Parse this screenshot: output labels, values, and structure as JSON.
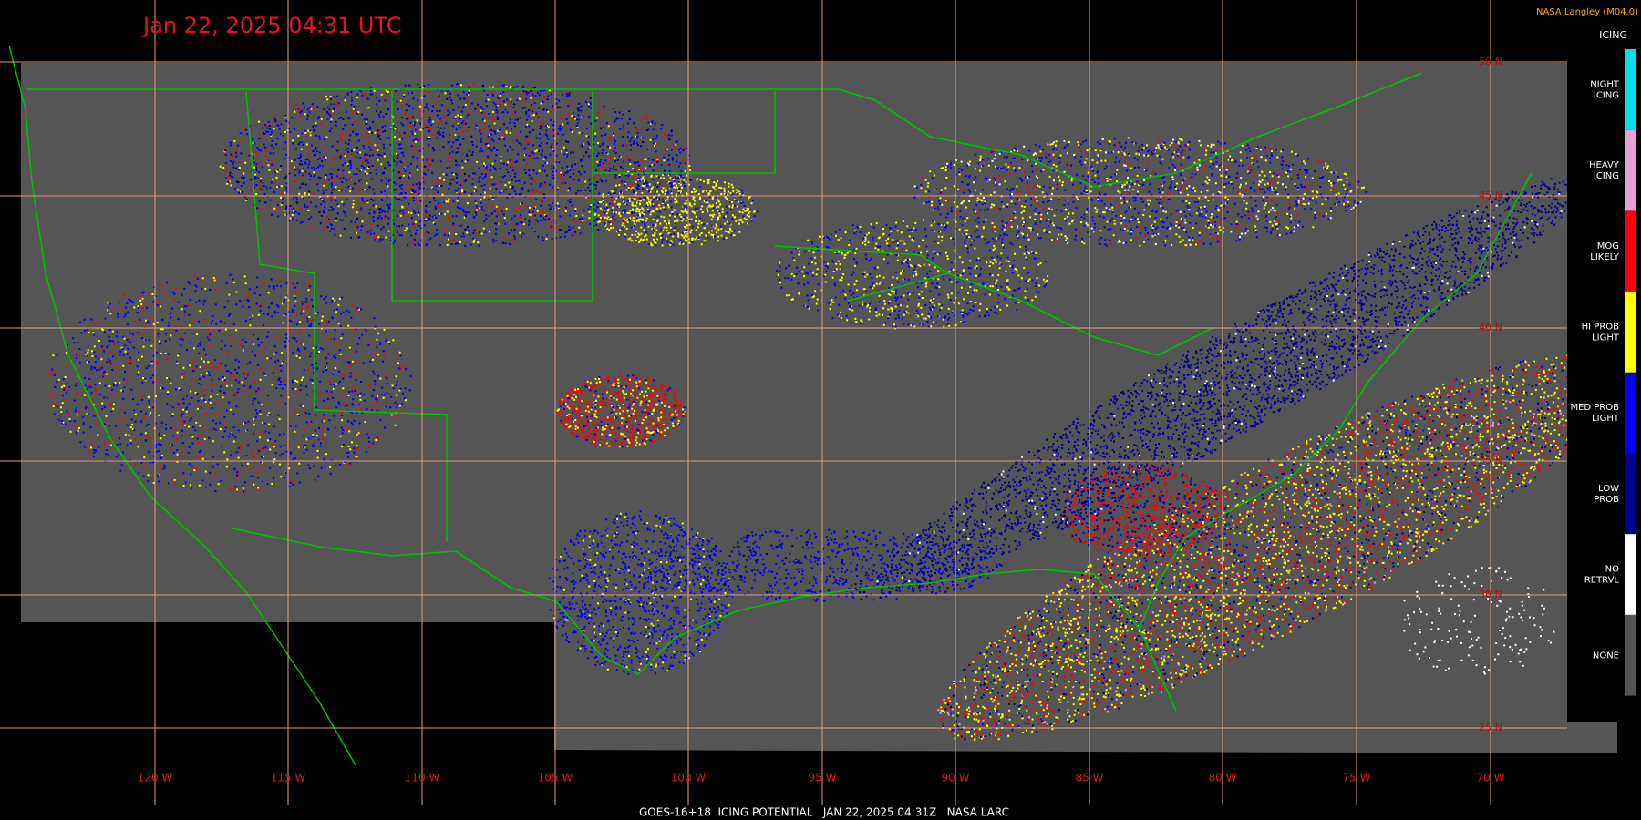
{
  "header": {
    "title": "Jan 22, 2025 04:31 UTC",
    "credit": "NASA Langley (M04.0)"
  },
  "legend": {
    "title": "ICING",
    "items": [
      {
        "lines": [
          "NIGHT",
          "ICING"
        ],
        "color": "#00e0e8"
      },
      {
        "lines": [
          "HEAVY",
          "ICING"
        ],
        "color": "#e8a0d8"
      },
      {
        "lines": [
          "MOG",
          "LIKELY"
        ],
        "color": "#ff0000"
      },
      {
        "lines": [
          "HI PROB",
          "LIGHT"
        ],
        "color": "#ffff00"
      },
      {
        "lines": [
          "MED PROB",
          "LIGHT"
        ],
        "color": "#0000ff"
      },
      {
        "lines": [
          "LOW",
          "PROB"
        ],
        "color": "#00008c"
      },
      {
        "lines": [
          "NO",
          "RETRVL"
        ],
        "color": "#ffffff"
      },
      {
        "lines": [
          "NONE"
        ],
        "color": "#555555"
      }
    ]
  },
  "grid": {
    "longitudes": [
      "120 W",
      "115 W",
      "110 W",
      "105 W",
      "100 W",
      "95 W",
      "90 W",
      "85 W",
      "80 W",
      "75 W",
      "70 W"
    ],
    "latitudes": [
      "50 N",
      "45 N",
      "40 N",
      "35 N",
      "30 N",
      "25 N"
    ]
  },
  "footer": "GOES-16+18  ICING POTENTIAL   JAN 22, 2025 04:31Z   NASA LARC"
}
